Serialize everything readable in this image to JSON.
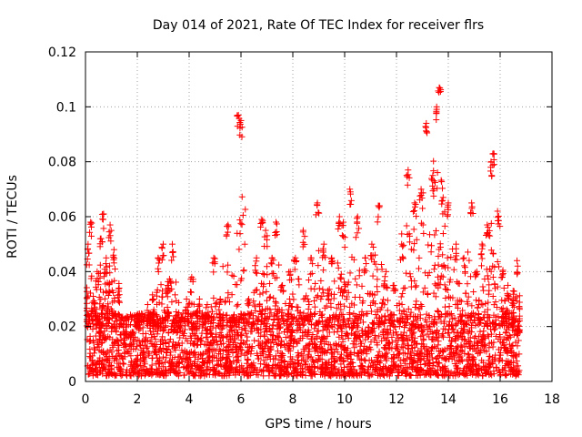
{
  "chart_data": {
    "type": "scatter",
    "title": "Day 014 of 2021, Rate Of TEC Index for receiver flrs",
    "xlabel": "GPS time / hours",
    "ylabel": "ROTI / TECUs",
    "xlim": [
      0,
      18
    ],
    "ylim": [
      0,
      0.12
    ],
    "xticks": [
      "0",
      "2",
      "4",
      "6",
      "8",
      "10",
      "12",
      "14",
      "16",
      "18"
    ],
    "yticks": [
      "0",
      "0.02",
      "0.04",
      "0.06",
      "0.08",
      "0.1",
      "0.12"
    ],
    "grid": true,
    "marker": "plus",
    "color": "#ff0000",
    "series": [
      {
        "name": "ROTI",
        "x": [
          0.1,
          0.2,
          0.3,
          0.45,
          0.6,
          0.7,
          0.8,
          0.95,
          1.1,
          1.3,
          1.5,
          1.8,
          2.1,
          2.4,
          2.6,
          2.8,
          3.0,
          3.2,
          3.35,
          3.6,
          3.9,
          4.1,
          4.4,
          4.7,
          4.95,
          5.2,
          5.5,
          5.8,
          5.9,
          6.0,
          6.3,
          6.6,
          6.8,
          6.95,
          7.2,
          7.35,
          7.6,
          7.9,
          8.1,
          8.4,
          8.7,
          8.95,
          9.2,
          9.5,
          9.8,
          9.95,
          10.2,
          10.5,
          10.8,
          11.05,
          11.3,
          11.6,
          11.9,
          12.2,
          12.45,
          12.7,
          12.95,
          13.15,
          13.4,
          13.55,
          13.65,
          13.8,
          14.0,
          14.3,
          14.6,
          14.9,
          15.1,
          15.3,
          15.5,
          15.65,
          15.75,
          15.9,
          16.1,
          16.3,
          16.5,
          16.65
        ],
        "y": [
          0.05,
          0.058,
          0.031,
          0.04,
          0.052,
          0.061,
          0.045,
          0.057,
          0.048,
          0.034,
          0.022,
          0.018,
          0.024,
          0.028,
          0.03,
          0.045,
          0.05,
          0.035,
          0.05,
          0.025,
          0.03,
          0.038,
          0.03,
          0.028,
          0.045,
          0.03,
          0.057,
          0.02,
          0.097,
          0.095,
          0.03,
          0.045,
          0.059,
          0.055,
          0.045,
          0.058,
          0.035,
          0.04,
          0.045,
          0.055,
          0.045,
          0.065,
          0.05,
          0.045,
          0.06,
          0.058,
          0.07,
          0.06,
          0.045,
          0.05,
          0.064,
          0.04,
          0.035,
          0.05,
          0.077,
          0.065,
          0.07,
          0.094,
          0.075,
          0.1,
          0.107,
          0.067,
          0.065,
          0.05,
          0.045,
          0.065,
          0.04,
          0.05,
          0.057,
          0.08,
          0.083,
          0.062,
          0.04,
          0.035,
          0.033,
          0.044
        ]
      }
    ],
    "baseline_noise": {
      "description": "dense floor of ROTI values between 0.002 and 0.025 TECUs from 0 to 16.7 hours",
      "x_range": [
        0.05,
        16.75
      ],
      "y_range": [
        0.002,
        0.025
      ]
    }
  }
}
